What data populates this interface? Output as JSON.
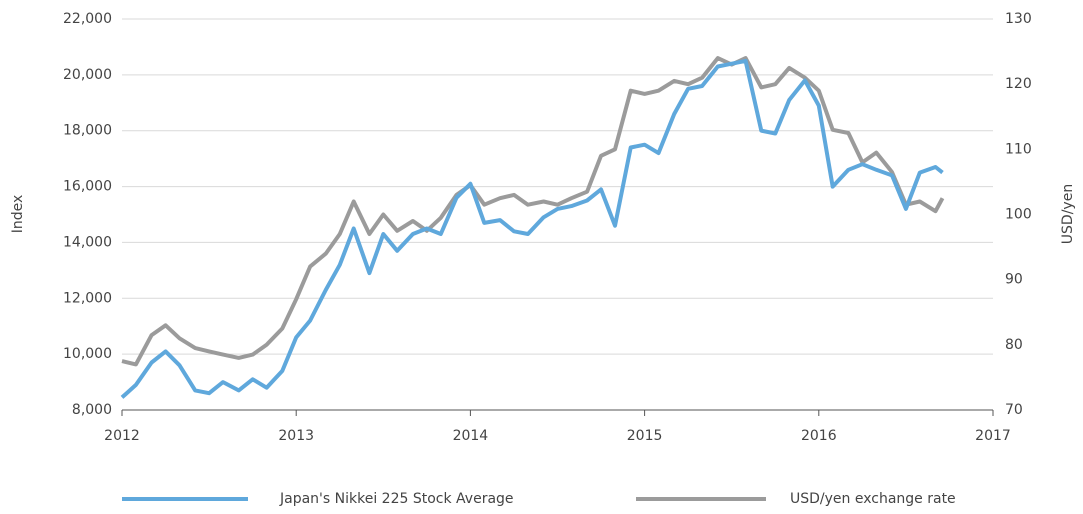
{
  "chart_data": {
    "type": "line",
    "x_unit": "year",
    "y_label": "Index",
    "y2_label": "USD/yen",
    "x": [
      2012.0,
      2012.08,
      2012.17,
      2012.25,
      2012.33,
      2012.42,
      2012.5,
      2012.58,
      2012.67,
      2012.75,
      2012.83,
      2012.92,
      2013.0,
      2013.08,
      2013.17,
      2013.25,
      2013.33,
      2013.42,
      2013.5,
      2013.58,
      2013.67,
      2013.75,
      2013.83,
      2013.92,
      2014.0,
      2014.08,
      2014.17,
      2014.25,
      2014.33,
      2014.42,
      2014.5,
      2014.58,
      2014.67,
      2014.75,
      2014.83,
      2014.92,
      2015.0,
      2015.08,
      2015.17,
      2015.25,
      2015.33,
      2015.42,
      2015.5,
      2015.58,
      2015.67,
      2015.75,
      2015.83,
      2015.92,
      2016.0,
      2016.08,
      2016.17,
      2016.25,
      2016.33,
      2016.42,
      2016.5,
      2016.58,
      2016.67,
      2016.71
    ],
    "series": [
      {
        "name": "Japan's Nikkei 225 Stock Average",
        "color": "#5fa8dc",
        "values": [
          8450,
          8900,
          9700,
          10100,
          9600,
          8700,
          8600,
          9000,
          8700,
          9100,
          8800,
          9400,
          10600,
          11200,
          12300,
          13200,
          14500,
          12900,
          14300,
          13700,
          14300,
          14500,
          14300,
          15600,
          16100,
          14700,
          14800,
          14400,
          14300,
          14900,
          15200,
          15300,
          15500,
          15900,
          14600,
          17400,
          17500,
          17200,
          18600,
          19500,
          19600,
          20300,
          20400,
          20500,
          18000,
          17900,
          19100,
          19800,
          18900,
          16000,
          16600,
          16800,
          16600,
          16400,
          15200,
          16500,
          16700,
          16500
        ]
      },
      {
        "name": "USD/yen exchange rate",
        "color": "#9b9b9b",
        "axis": "y2",
        "values": [
          77.5,
          77,
          81.5,
          83,
          81,
          79.5,
          79,
          78.5,
          78,
          78.5,
          80,
          82.5,
          87,
          92,
          94,
          97,
          102,
          97,
          100,
          97.5,
          99,
          97.5,
          99.5,
          103,
          104.5,
          101.5,
          102.5,
          103,
          101.5,
          102,
          101.5,
          102.5,
          103.5,
          109,
          110,
          119,
          118.5,
          119,
          120.5,
          120,
          121,
          124,
          123,
          124,
          119.5,
          120,
          122.5,
          121,
          119,
          113,
          112.5,
          108,
          109.5,
          106.5,
          101.5,
          102,
          100.5,
          102.5
        ]
      }
    ],
    "xlim": [
      2012,
      2017
    ],
    "xticks": [
      2012,
      2013,
      2014,
      2015,
      2016,
      2017
    ],
    "ylim": [
      8000,
      22000
    ],
    "yticks": [
      {
        "value": 8000,
        "label": "8,000"
      },
      {
        "value": 10000,
        "label": "10,000"
      },
      {
        "value": 12000,
        "label": "12,000"
      },
      {
        "value": 14000,
        "label": "14,000"
      },
      {
        "value": 16000,
        "label": "16,000"
      },
      {
        "value": 18000,
        "label": "18,000"
      },
      {
        "value": 20000,
        "label": "20,000"
      },
      {
        "value": 22000,
        "label": "22,000"
      }
    ],
    "y2lim": [
      70,
      130
    ],
    "y2ticks": [
      70,
      80,
      90,
      100,
      110,
      120,
      130
    ],
    "grid": true,
    "legend": "bottom"
  }
}
